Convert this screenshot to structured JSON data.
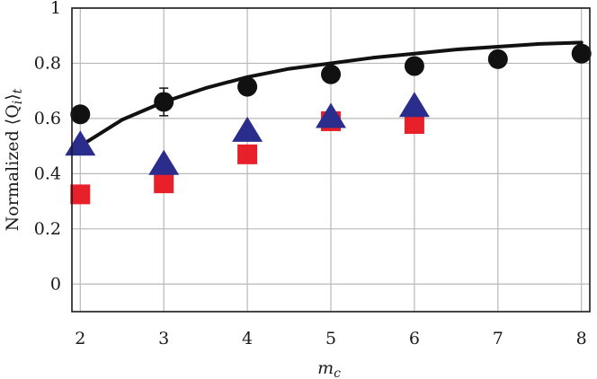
{
  "chart_data": {
    "type": "scatter",
    "title": "",
    "xlabel": "m",
    "xlabel_sub": "c",
    "ylabel": "Normalized ⟨Q",
    "ylabel_sub_i": "i",
    "ylabel_close": "⟩",
    "ylabel_sub_t": "t",
    "xlim": [
      1.9,
      8.1
    ],
    "ylim": [
      -0.1,
      1.0
    ],
    "xticks": [
      "2",
      "3",
      "4",
      "5",
      "6",
      "7",
      "8"
    ],
    "yticks": [
      "0",
      "0.2",
      "0.4",
      "0.6",
      "0.8",
      "1"
    ],
    "grid": true,
    "series": [
      {
        "marker": "circle",
        "color": "#111111",
        "x": [
          2,
          3,
          4,
          5,
          6,
          7,
          8
        ],
        "y": [
          0.615,
          0.66,
          0.715,
          0.76,
          0.79,
          0.815,
          0.835
        ],
        "err": [
          0,
          0.05,
          0,
          0,
          0,
          0,
          0
        ]
      },
      {
        "marker": "square",
        "color": "#e8202a",
        "x": [
          2,
          3,
          4,
          5,
          6
        ],
        "y": [
          0.325,
          0.365,
          0.47,
          0.59,
          0.58
        ]
      },
      {
        "marker": "triangle",
        "color": "#2b2d8c",
        "x": [
          2,
          3,
          4,
          5,
          6
        ],
        "y": [
          0.5,
          0.43,
          0.55,
          0.6,
          0.64
        ]
      }
    ],
    "fit_curve": {
      "color": "#111111",
      "x": [
        2,
        2.5,
        3,
        3.5,
        4,
        4.5,
        5,
        5.5,
        6,
        6.5,
        7,
        7.5,
        8
      ],
      "y": [
        0.5,
        0.595,
        0.66,
        0.71,
        0.75,
        0.78,
        0.8,
        0.82,
        0.835,
        0.85,
        0.86,
        0.87,
        0.875
      ]
    }
  }
}
